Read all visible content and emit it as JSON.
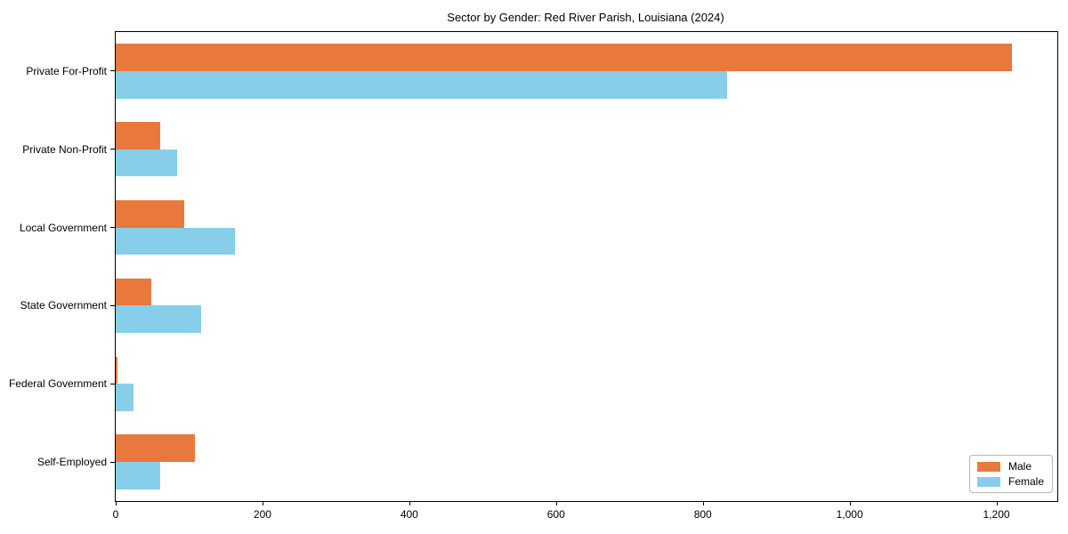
{
  "chart_data": {
    "type": "bar",
    "orientation": "horizontal",
    "title": "Sector by Gender: Red River Parish, Louisiana (2024)",
    "categories": [
      "Private For-Profit",
      "Private Non-Profit",
      "Local Government",
      "State Government",
      "Federal Government",
      "Self-Employed"
    ],
    "series": [
      {
        "name": "Male",
        "color": "#e8783c",
        "values": [
          1221,
          61,
          93,
          48,
          3,
          108
        ]
      },
      {
        "name": "Female",
        "color": "#87ceeb",
        "values": [
          833,
          84,
          162,
          117,
          24,
          61
        ]
      }
    ],
    "xlim": [
      0,
      1283
    ],
    "x_ticks": [
      {
        "value": 0,
        "label": "0"
      },
      {
        "value": 200,
        "label": "200"
      },
      {
        "value": 400,
        "label": "400"
      },
      {
        "value": 600,
        "label": "600"
      },
      {
        "value": 800,
        "label": "800"
      },
      {
        "value": 1000,
        "label": "1,000"
      },
      {
        "value": 1200,
        "label": "1,200"
      }
    ],
    "xlabel": "",
    "ylabel": "",
    "grid": false,
    "legend": {
      "position": "lower-right"
    },
    "colors": {
      "spine": "#000000",
      "background": "#ffffff",
      "text": "#000000"
    }
  }
}
